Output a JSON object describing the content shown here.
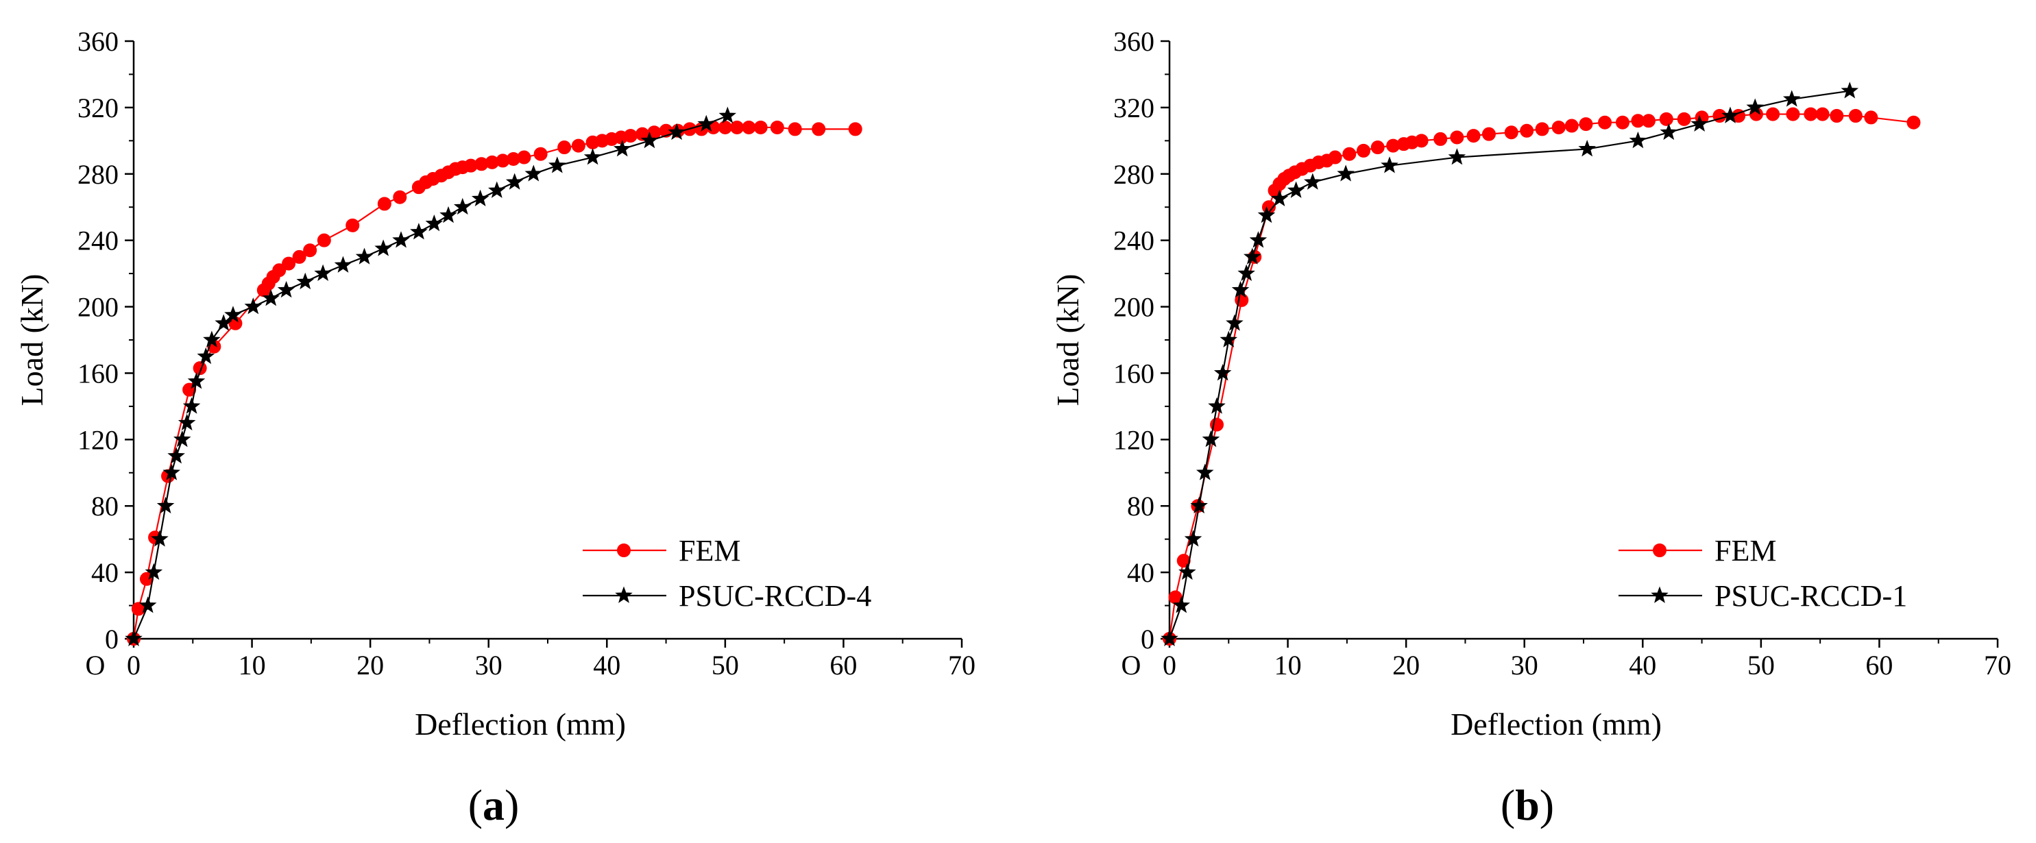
{
  "chart_data": [
    {
      "type": "line",
      "panel_label": "a",
      "title": "",
      "xlabel": "Deflection (mm)",
      "ylabel": "Load (kN)",
      "origin_label": "O",
      "xlim": [
        0,
        70
      ],
      "ylim": [
        0,
        360
      ],
      "xticks": [
        0,
        10,
        20,
        30,
        40,
        50,
        60,
        70
      ],
      "yticks": [
        0,
        40,
        80,
        120,
        160,
        200,
        240,
        280,
        320,
        360
      ],
      "grid": false,
      "legend_position": "bottom-right",
      "series": [
        {
          "name": "FEM",
          "color": "#ff0000",
          "marker": "circle",
          "x": [
            0,
            0.4,
            1.1,
            1.8,
            2.9,
            4.7,
            5.6,
            6.8,
            8.6,
            11.0,
            11.4,
            11.8,
            12.3,
            13.1,
            14.0,
            14.9,
            16.1,
            18.5,
            21.2,
            22.5,
            24.1,
            24.7,
            25.3,
            26.0,
            26.6,
            27.2,
            27.8,
            28.5,
            29.4,
            30.3,
            31.2,
            32.1,
            33.0,
            34.4,
            36.4,
            37.6,
            38.8,
            39.6,
            40.4,
            41.2,
            42.0,
            43.0,
            44.0,
            45.0,
            46.0,
            47.0,
            48.0,
            49.0,
            50.0,
            51.0,
            52.0,
            53.0,
            54.4,
            55.9,
            57.9,
            61.0
          ],
          "y": [
            0,
            18,
            36,
            61,
            98,
            150,
            163,
            176,
            190,
            210,
            214,
            218,
            222,
            226,
            230,
            234,
            240,
            249,
            262,
            266,
            272,
            275,
            277,
            279,
            281,
            283,
            284,
            285,
            286,
            287,
            288,
            289,
            290,
            292,
            296,
            297,
            299,
            300,
            301,
            302,
            303,
            304,
            305,
            306,
            306,
            307,
            307,
            308,
            308,
            308,
            308,
            308,
            308,
            307,
            307,
            307
          ]
        },
        {
          "name": "PSUC-RCCD-4",
          "color": "#000000",
          "marker": "star",
          "x": [
            0,
            1.2,
            1.7,
            2.2,
            2.7,
            3.2,
            3.6,
            4.1,
            4.5,
            4.9,
            5.3,
            6.1,
            6.6,
            7.6,
            8.4,
            10.1,
            11.6,
            12.9,
            14.5,
            16.0,
            17.7,
            19.5,
            21.1,
            22.6,
            24.1,
            25.4,
            26.6,
            27.8,
            29.3,
            30.7,
            32.2,
            33.8,
            35.8,
            38.8,
            41.3,
            43.6,
            45.9,
            48.4,
            50.2
          ],
          "y": [
            0,
            20,
            40,
            60,
            80,
            100,
            110,
            120,
            130,
            140,
            155,
            170,
            180,
            190,
            195,
            200,
            205,
            210,
            215,
            220,
            225,
            230,
            235,
            240,
            245,
            250,
            255,
            260,
            265,
            270,
            275,
            280,
            285,
            290,
            295,
            300,
            305,
            310,
            315
          ]
        }
      ]
    },
    {
      "type": "line",
      "panel_label": "b",
      "title": "",
      "xlabel": "Deflection (mm)",
      "ylabel": "Load (kN)",
      "origin_label": "O",
      "xlim": [
        0,
        70
      ],
      "ylim": [
        0,
        360
      ],
      "xticks": [
        0,
        10,
        20,
        30,
        40,
        50,
        60,
        70
      ],
      "yticks": [
        0,
        40,
        80,
        120,
        160,
        200,
        240,
        280,
        320,
        360
      ],
      "grid": false,
      "legend_position": "bottom-right",
      "series": [
        {
          "name": "FEM",
          "color": "#ff0000",
          "marker": "circle",
          "x": [
            0,
            0.5,
            1.2,
            2.4,
            4.0,
            6.1,
            7.2,
            8.4,
            8.9,
            9.3,
            9.7,
            10.1,
            10.6,
            11.2,
            11.9,
            12.6,
            13.3,
            14.0,
            15.2,
            16.4,
            17.6,
            18.9,
            19.8,
            20.5,
            21.3,
            22.9,
            24.3,
            25.7,
            27.0,
            28.9,
            30.2,
            31.5,
            32.9,
            34.0,
            35.2,
            36.8,
            38.3,
            39.6,
            40.5,
            42.0,
            43.5,
            45.0,
            46.5,
            48.1,
            49.6,
            51.0,
            52.7,
            54.2,
            55.2,
            56.4,
            58.0,
            59.3,
            62.9
          ],
          "y": [
            0,
            25,
            47,
            80,
            129,
            204,
            230,
            260,
            270,
            274,
            277,
            279,
            281,
            283,
            285,
            287,
            288,
            290,
            292,
            294,
            296,
            297,
            298,
            299,
            300,
            301,
            302,
            303,
            304,
            305,
            306,
            307,
            308,
            309,
            310,
            311,
            311,
            312,
            312,
            313,
            313,
            314,
            315,
            315,
            316,
            316,
            316,
            316,
            316,
            315,
            315,
            314,
            311
          ]
        },
        {
          "name": "PSUC-RCCD-1",
          "color": "#000000",
          "marker": "star",
          "x": [
            0,
            1.0,
            1.5,
            2.0,
            2.5,
            3.0,
            3.5,
            4.0,
            4.5,
            5.0,
            5.5,
            6.0,
            6.5,
            7.0,
            7.5,
            8.2,
            9.3,
            10.7,
            12.1,
            14.9,
            18.6,
            24.3,
            35.3,
            39.6,
            42.2,
            44.8,
            47.4,
            49.5,
            52.6,
            57.5
          ],
          "y": [
            0,
            20,
            40,
            60,
            80,
            100,
            120,
            140,
            160,
            180,
            190,
            210,
            220,
            230,
            240,
            255,
            265,
            270,
            275,
            280,
            285,
            290,
            295,
            300,
            305,
            310,
            315,
            320,
            325,
            330
          ]
        }
      ]
    }
  ]
}
